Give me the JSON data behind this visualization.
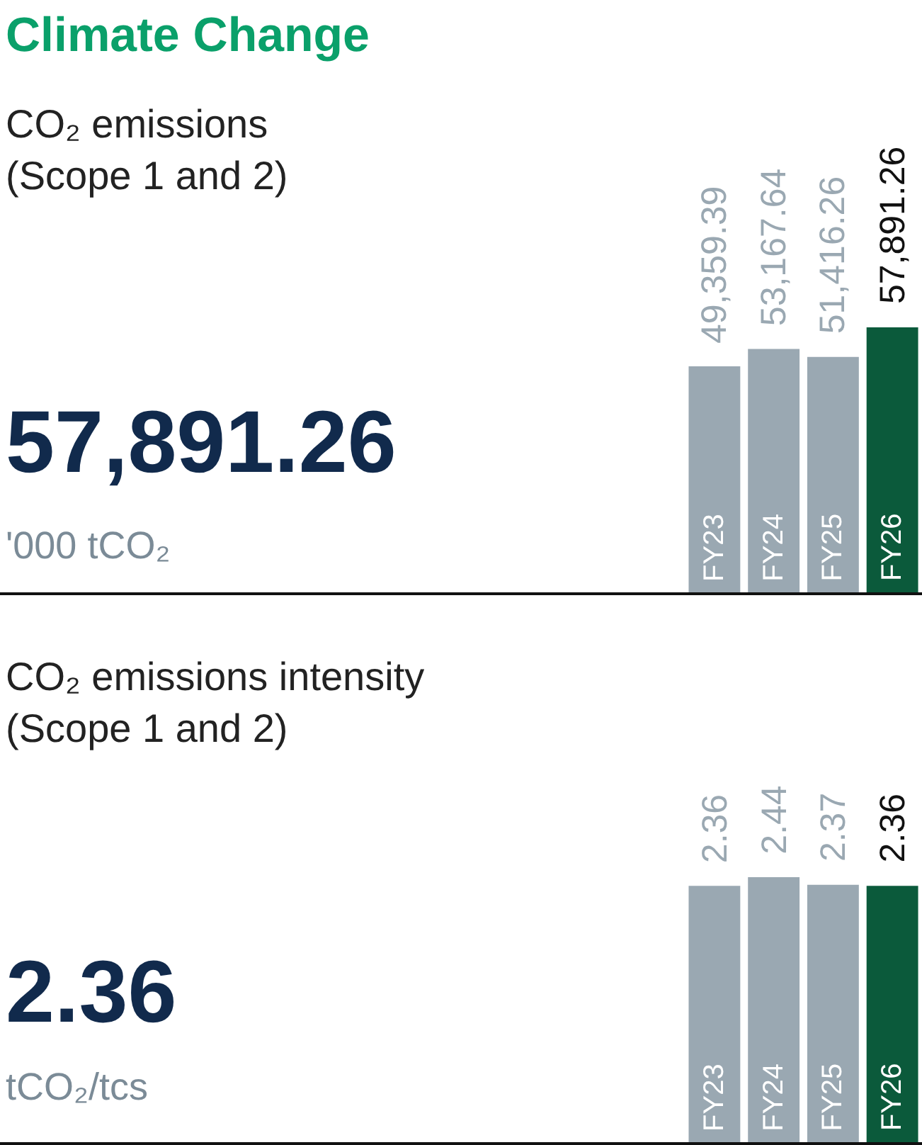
{
  "chart_data": [
    {
      "type": "bar",
      "categories": [
        "FY23",
        "FY24",
        "FY25",
        "FY26"
      ],
      "values": [
        49359.39,
        53167.64,
        51416.26,
        57891.26
      ],
      "colors": [
        "#9aa8b2",
        "#9aa8b2",
        "#9aa8b2",
        "#0b5a3b"
      ],
      "value_labels": [
        "49,359.39",
        "53,167.64",
        "51,416.26",
        "57,891.26"
      ],
      "annotations": [
        "Climate Change",
        "CO₂ emissions (Scope 1 and 2)",
        "57,891.26",
        "'000 tCO₂"
      ]
    },
    {
      "type": "bar",
      "categories": [
        "FY23",
        "FY24",
        "FY25",
        "FY26"
      ],
      "values": [
        2.36,
        2.44,
        2.37,
        2.36
      ],
      "colors": [
        "#9aa8b2",
        "#9aa8b2",
        "#9aa8b2",
        "#0b5a3b"
      ],
      "data_labels": true,
      "annotations": [
        "CO₂ emissions intensity (Scope 1 and 2)",
        "2.36",
        "tCO₂/tcs"
      ]
    }
  ]
}
